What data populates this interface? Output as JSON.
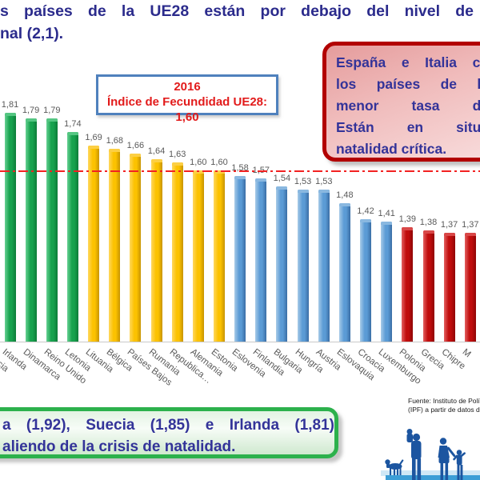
{
  "title": {
    "line1": "s países de la UE28 están por debajo del nivel de",
    "line2": "nal (2,1)."
  },
  "red_callout": {
    "lines": [
      "España e Italia co",
      "los países de la",
      "menor tasa de",
      "Están en situa",
      "natalidad crítica."
    ]
  },
  "green_callout": {
    "line1": "a (1,92), Suecia (1,85) e Irlanda (1,81)",
    "line2": "aliendo de la crisis de natalidad."
  },
  "source": {
    "line1": "Fuente: Instituto de Polí",
    "line2": "(IPF) a partir de datos d"
  },
  "chart_data": {
    "type": "bar",
    "annotation_box": {
      "year": "2016",
      "text": "Índice de Fecundidad UE28: 1,60"
    },
    "categories": [
      "Irlanda",
      "Dinamarca",
      "Reino Unido",
      "Letonia",
      "Lituania",
      "Bélgica",
      "Países Bajos",
      "Rumania",
      "Republica…",
      "Alemania",
      "Estonia",
      "Eslovenia",
      "Finlandia",
      "Bulgaria",
      "Hungría",
      "Austria",
      "Eslovaquia",
      "Croacia",
      "Luxemburgo",
      "Polonia",
      "Grecia",
      "Chipre",
      "M"
    ],
    "values": [
      1.81,
      1.79,
      1.79,
      1.74,
      1.69,
      1.68,
      1.66,
      1.64,
      1.63,
      1.6,
      1.6,
      1.58,
      1.57,
      1.54,
      1.53,
      1.53,
      1.48,
      1.42,
      1.41,
      1.39,
      1.38,
      1.37,
      1.37
    ],
    "value_labels": [
      "1,81",
      "1,79",
      "1,79",
      "1,74",
      "1,69",
      "1,68",
      "1,66",
      "1,64",
      "1,63",
      "1,60",
      "1,60",
      "1,58",
      "1,57",
      "1,54",
      "1,53",
      "1,53",
      "1,48",
      "1,42",
      "1,41",
      "1,39",
      "1,38",
      "1,37",
      "1,37"
    ],
    "bar_color_groups": [
      "green",
      "green",
      "green",
      "green",
      "yellow",
      "yellow",
      "yellow",
      "yellow",
      "yellow",
      "yellow",
      "yellow",
      "blue",
      "blue",
      "blue",
      "blue",
      "blue",
      "blue",
      "blue",
      "blue",
      "red",
      "red",
      "red",
      "red"
    ],
    "palette": {
      "green": {
        "light": "#67d193",
        "main": "#17a24e",
        "dark": "#0d7c39",
        "cap": "#55c682"
      },
      "yellow": {
        "light": "#ffd75e",
        "main": "#fcc200",
        "dark": "#c79400",
        "cap": "#fccf44"
      },
      "blue": {
        "light": "#a8cbe8",
        "main": "#5b9bd5",
        "dark": "#3a6ea5",
        "cap": "#8ab8e0"
      },
      "red": {
        "light": "#e36060",
        "main": "#c00d0d",
        "dark": "#8f0606",
        "cap": "#d94848"
      }
    },
    "partial_left_category": "ecia",
    "partial_right_category": "M",
    "reference_line": {
      "value": 1.6,
      "color": "#f22222",
      "style": "dash-dot"
    },
    "ylim": [
      0.97,
      1.95
    ],
    "xlabel": "",
    "ylabel": "",
    "grid": false,
    "legend": false
  }
}
